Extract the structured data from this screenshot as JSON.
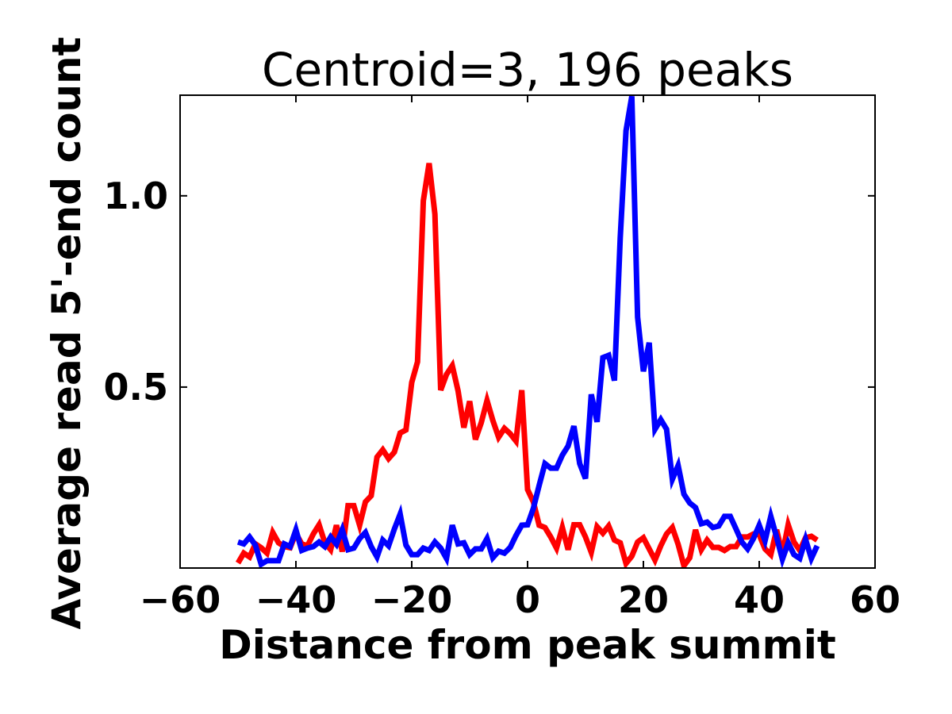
{
  "chart_data": {
    "type": "line",
    "title": "Centroid=3, 196 peaks",
    "xlabel": "Distance from peak summit",
    "ylabel": "Average read 5'-end count",
    "xlim": [
      -60,
      60
    ],
    "ylim": [
      0.027,
      1.263
    ],
    "xticks": [
      -60,
      -40,
      -20,
      0,
      20,
      40,
      60
    ],
    "xtick_labels": [
      "−60",
      "−40",
      "−20",
      "0",
      "20",
      "40",
      "60"
    ],
    "yticks": [
      0.5,
      1.0
    ],
    "ytick_labels": [
      "0.5",
      "1.0"
    ],
    "grid": false,
    "x_start": -50,
    "x_step": 1,
    "series": [
      {
        "name": "red",
        "color": "#ff0000",
        "values": [
          0.04,
          0.066,
          0.056,
          0.09,
          0.08,
          0.066,
          0.12,
          0.093,
          0.083,
          0.08,
          0.118,
          0.09,
          0.085,
          0.116,
          0.14,
          0.093,
          0.075,
          0.139,
          0.07,
          0.19,
          0.19,
          0.139,
          0.2,
          0.216,
          0.317,
          0.336,
          0.313,
          0.33,
          0.38,
          0.388,
          0.512,
          0.566,
          0.987,
          1.085,
          0.952,
          0.492,
          0.533,
          0.556,
          0.49,
          0.394,
          0.463,
          0.363,
          0.407,
          0.465,
          0.413,
          0.369,
          0.392,
          0.378,
          0.359,
          0.492,
          0.232,
          0.2,
          0.139,
          0.133,
          0.108,
          0.079,
          0.133,
          0.075,
          0.14,
          0.14,
          0.108,
          0.068,
          0.135,
          0.118,
          0.137,
          0.1,
          0.093,
          0.039,
          0.058,
          0.095,
          0.106,
          0.077,
          0.048,
          0.085,
          0.116,
          0.133,
          0.089,
          0.033,
          0.054,
          0.127,
          0.075,
          0.1,
          0.081,
          0.081,
          0.073,
          0.083,
          0.083,
          0.108,
          0.108,
          0.116,
          0.114,
          0.077,
          0.062,
          0.127,
          0.064,
          0.14,
          0.095,
          0.073,
          0.106,
          0.11,
          0.1
        ]
      },
      {
        "name": "blue",
        "color": "#0000ff",
        "values": [
          0.095,
          0.09,
          0.108,
          0.087,
          0.037,
          0.046,
          0.046,
          0.046,
          0.09,
          0.083,
          0.127,
          0.073,
          0.079,
          0.083,
          0.095,
          0.083,
          0.108,
          0.089,
          0.127,
          0.075,
          0.079,
          0.104,
          0.12,
          0.083,
          0.056,
          0.1,
          0.085,
          0.129,
          0.168,
          0.087,
          0.062,
          0.062,
          0.079,
          0.073,
          0.095,
          0.079,
          0.052,
          0.139,
          0.09,
          0.093,
          0.062,
          0.077,
          0.077,
          0.104,
          0.054,
          0.071,
          0.066,
          0.081,
          0.112,
          0.139,
          0.14,
          0.183,
          0.243,
          0.3,
          0.288,
          0.288,
          0.322,
          0.346,
          0.398,
          0.3,
          0.261,
          0.481,
          0.409,
          0.577,
          0.583,
          0.517,
          0.89,
          1.17,
          1.26,
          0.683,
          0.541,
          0.616,
          0.39,
          0.415,
          0.39,
          0.259,
          0.295,
          0.22,
          0.197,
          0.185,
          0.143,
          0.147,
          0.133,
          0.137,
          0.162,
          0.162,
          0.129,
          0.095,
          0.077,
          0.104,
          0.139,
          0.098,
          0.162,
          0.108,
          0.05,
          0.093,
          0.062,
          0.052,
          0.102,
          0.052,
          0.085
        ]
      }
    ]
  }
}
